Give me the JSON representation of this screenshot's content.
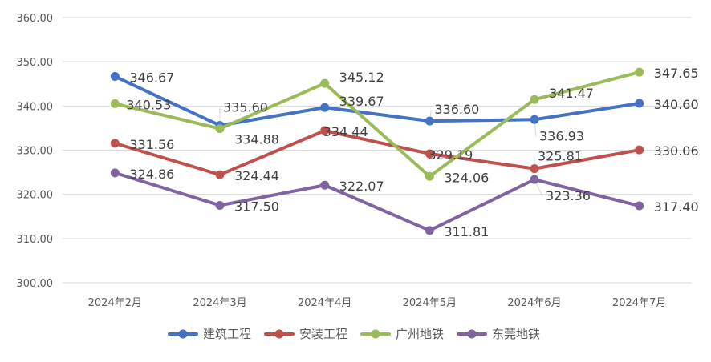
{
  "chart_data": {
    "type": "line",
    "categories": [
      "2024年2月",
      "2024年3月",
      "2024年4月",
      "2024年5月",
      "2024年6月",
      "2024年7月"
    ],
    "ylim": [
      300,
      360
    ],
    "yticks": [
      "300.00",
      "310.00",
      "320.00",
      "330.00",
      "340.00",
      "350.00",
      "360.00"
    ],
    "grid": true,
    "legend_position": "bottom",
    "series": [
      {
        "name": "建筑工程",
        "color": "#4472C4",
        "values": [
          346.67,
          335.6,
          339.67,
          336.6,
          336.93,
          340.6
        ],
        "labels": [
          "346.67",
          "335.60",
          "339.67",
          "336.60",
          "336.93",
          "340.60"
        ]
      },
      {
        "name": "安装工程",
        "color": "#C0504D",
        "values": [
          331.56,
          324.44,
          334.44,
          329.19,
          325.81,
          330.06
        ],
        "labels": [
          "331.56",
          "324.44",
          "334.44",
          "329.19",
          "325.81",
          "330.06"
        ]
      },
      {
        "name": "广州地铁",
        "color": "#9BBB59",
        "values": [
          340.53,
          334.88,
          345.12,
          324.06,
          341.47,
          347.65
        ],
        "labels": [
          "340.53",
          "334.88",
          "345.12",
          "324.06",
          "341.47",
          "347.65"
        ]
      },
      {
        "name": "东莞地铁",
        "color": "#8064A2",
        "values": [
          324.86,
          317.5,
          322.07,
          311.81,
          323.36,
          317.4
        ],
        "labels": [
          "324.86",
          "317.50",
          "322.07",
          "311.81",
          "323.36",
          "317.40"
        ]
      }
    ]
  }
}
